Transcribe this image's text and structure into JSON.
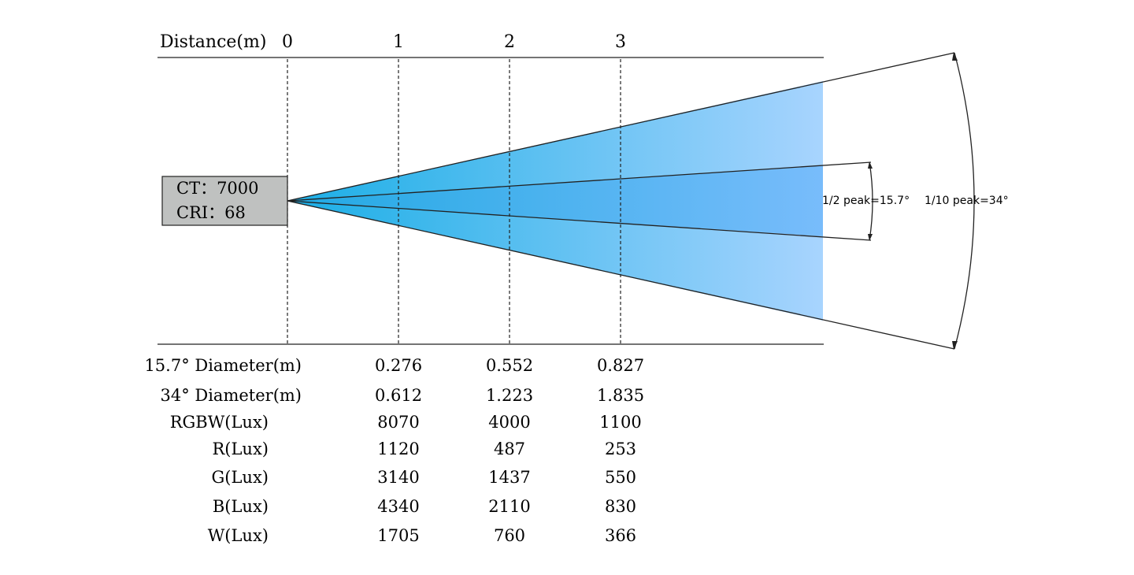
{
  "header": {
    "distance_label": "Distance(m)",
    "distances": [
      "0",
      "1",
      "2",
      "3"
    ]
  },
  "source_box": {
    "ct": "CT：7000",
    "cri": "CRI：68"
  },
  "angles": {
    "half_peak": "1/2 peak=15.7°",
    "tenth_peak": "1/10 peak=34°"
  },
  "table": {
    "rows": [
      {
        "label": "15.7° Diameter(m)",
        "values": [
          "0.276",
          "0.552",
          "0.827"
        ]
      },
      {
        "label": "34° Diameter(m)",
        "values": [
          "0.612",
          "1.223",
          "1.835"
        ]
      },
      {
        "label": "RGBW(Lux)",
        "values": [
          "8070",
          "4000",
          "1100"
        ]
      },
      {
        "label": "R(Lux)",
        "values": [
          "1120",
          "487",
          "253"
        ]
      },
      {
        "label": "G(Lux)",
        "values": [
          "3140",
          "1437",
          "550"
        ]
      },
      {
        "label": "B(Lux)",
        "values": [
          "4340",
          "2110",
          "830"
        ]
      },
      {
        "label": "W(Lux)",
        "values": [
          "1705",
          "760",
          "366"
        ]
      }
    ]
  },
  "colors": {
    "beam_start": "#1aaee6",
    "beam_end": "#a8d4fe",
    "inner_beam_start": "#21a9e3",
    "inner_beam_end": "#78bcfb",
    "source_box_fill": "#bfc1c0"
  }
}
